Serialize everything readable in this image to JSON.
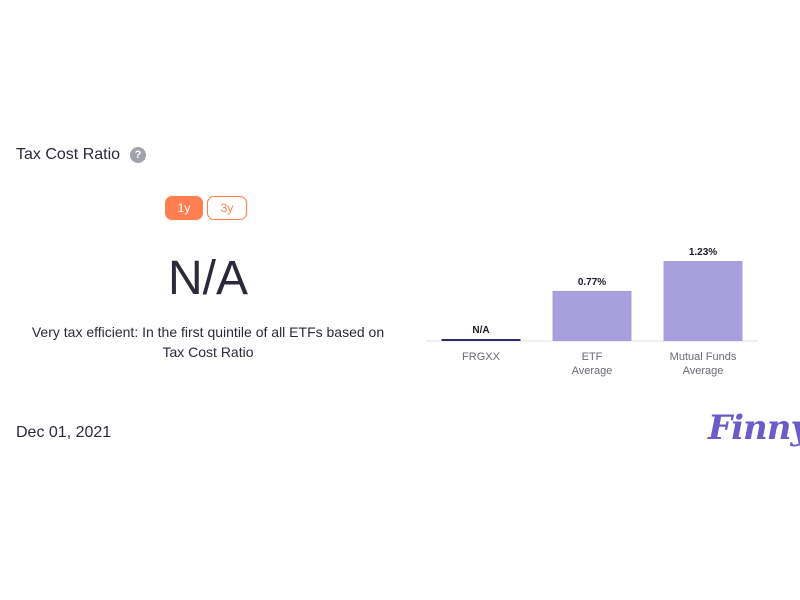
{
  "header": {
    "title": "Tax Cost Ratio",
    "help_icon": "question-circle-icon"
  },
  "period_toggle": {
    "options": [
      "1y",
      "3y"
    ],
    "selected": "1y"
  },
  "main_value": "N/A",
  "description": "Very tax efficient: In the first quintile of all ETFs based on Tax Cost Ratio",
  "chart_data": {
    "type": "bar",
    "categories": [
      {
        "line1": "FRGXX",
        "line2": ""
      },
      {
        "line1": "ETF",
        "line2": "Average"
      },
      {
        "line1": "Mutual Funds",
        "line2": "Average"
      }
    ],
    "values": [
      null,
      0.77,
      1.23
    ],
    "labels": [
      "N/A",
      "0.77%",
      "1.23%"
    ],
    "ylim": [
      0,
      1.23
    ],
    "colors": {
      "fund": "#2b2a72",
      "average": "#a89fdf"
    },
    "grid": false,
    "legend": "none"
  },
  "footer": {
    "date": "Dec 01, 2021",
    "logo_text": "Finny"
  }
}
